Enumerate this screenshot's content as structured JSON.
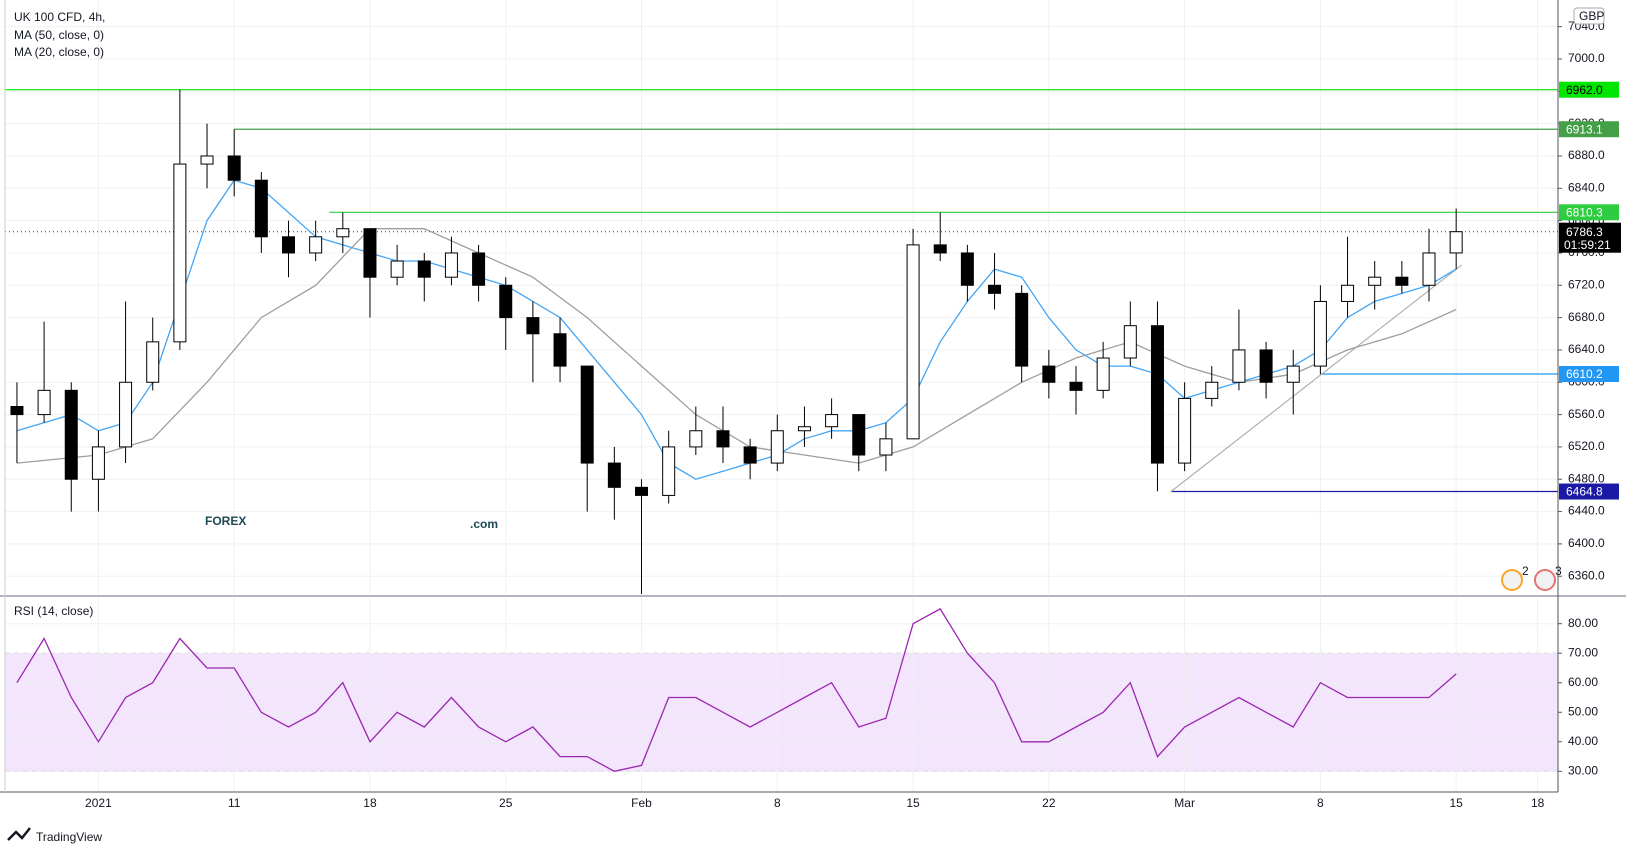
{
  "chart_data": {
    "type": "candlestick",
    "title": "UK 100 CFD, 4h,",
    "indicators": [
      "MA (50, close, 0)",
      "MA (20, close, 0)"
    ],
    "currency": "GBP",
    "brand": "TradingView",
    "logo": {
      "main": "FOREX",
      "suffix": ".com"
    },
    "badges": [
      "2",
      "3"
    ],
    "xlim": [
      -3.44,
      53.75
    ],
    "xticks": [
      {
        "value": 0,
        "label": "2021"
      },
      {
        "value": 5,
        "label": "11"
      },
      {
        "value": 10,
        "label": "18"
      },
      {
        "value": 15,
        "label": "25"
      },
      {
        "value": 20,
        "label": "Feb"
      },
      {
        "value": 25,
        "label": "8"
      },
      {
        "value": 30,
        "label": "15"
      },
      {
        "value": 35,
        "label": "22"
      },
      {
        "value": 40,
        "label": "Mar"
      },
      {
        "value": 45,
        "label": "8"
      },
      {
        "value": 50,
        "label": "15"
      },
      {
        "value": 53,
        "label": "18"
      }
    ],
    "ylim": [
      6338,
      7073
    ],
    "yticks": [
      {
        "value": 6360,
        "label": "6360.0"
      },
      {
        "value": 6400,
        "label": "6400.0"
      },
      {
        "value": 6440,
        "label": "6440.0"
      },
      {
        "value": 6480,
        "label": "6480.0"
      },
      {
        "value": 6520,
        "label": "6520.0"
      },
      {
        "value": 6560,
        "label": "6560.0"
      },
      {
        "value": 6600,
        "label": "6600.0"
      },
      {
        "value": 6640,
        "label": "6640.0"
      },
      {
        "value": 6680,
        "label": "6680.0"
      },
      {
        "value": 6720,
        "label": "6720.0"
      },
      {
        "value": 6760,
        "label": "6760.0"
      },
      {
        "value": 6800,
        "label": "6800.0"
      },
      {
        "value": 6840,
        "label": "6840.0"
      },
      {
        "value": 6880,
        "label": "6880.0"
      },
      {
        "value": 6920,
        "label": "6920.0"
      },
      {
        "value": 6960,
        "label": "6960.0"
      },
      {
        "value": 7000,
        "label": "7000.0"
      },
      {
        "value": 7040,
        "label": "7040.0"
      }
    ],
    "grid": true,
    "up_color": "#ffffff",
    "down_color": "#000000",
    "x": [
      -3,
      -2,
      -1,
      0,
      1,
      2,
      3,
      4,
      5,
      6,
      7,
      8,
      9,
      10,
      11,
      12,
      13,
      14,
      15,
      16,
      17,
      18,
      19,
      20,
      21,
      22,
      23,
      24,
      25,
      26,
      27,
      28,
      29,
      30,
      31,
      32,
      33,
      34,
      35,
      36,
      37,
      38,
      39,
      40,
      41,
      42,
      43,
      44,
      45,
      46,
      47,
      48,
      49,
      50
    ],
    "candles": [
      [
        6570,
        6600,
        6500,
        6560
      ],
      [
        6560,
        6675,
        6550,
        6590
      ],
      [
        6590,
        6600,
        6440,
        6480
      ],
      [
        6480,
        6540,
        6440,
        6520
      ],
      [
        6520,
        6700,
        6500,
        6600
      ],
      [
        6600,
        6680,
        6590,
        6650
      ],
      [
        6650,
        6962,
        6640,
        6870
      ],
      [
        6870,
        6920,
        6840,
        6880
      ],
      [
        6880,
        6913,
        6830,
        6850
      ],
      [
        6850,
        6860,
        6760,
        6780
      ],
      [
        6780,
        6800,
        6730,
        6760
      ],
      [
        6760,
        6800,
        6750,
        6780
      ],
      [
        6780,
        6810,
        6760,
        6790
      ],
      [
        6790,
        6790,
        6680,
        6730
      ],
      [
        6730,
        6770,
        6720,
        6750
      ],
      [
        6750,
        6760,
        6700,
        6730
      ],
      [
        6730,
        6780,
        6720,
        6760
      ],
      [
        6760,
        6770,
        6700,
        6720
      ],
      [
        6720,
        6730,
        6640,
        6680
      ],
      [
        6680,
        6700,
        6600,
        6660
      ],
      [
        6660,
        6680,
        6600,
        6620
      ],
      [
        6620,
        6620,
        6440,
        6500
      ],
      [
        6500,
        6520,
        6430,
        6470
      ],
      [
        6470,
        6480,
        6338,
        6460
      ],
      [
        6460,
        6540,
        6450,
        6520
      ],
      [
        6520,
        6570,
        6510,
        6540
      ],
      [
        6540,
        6570,
        6500,
        6520
      ],
      [
        6520,
        6530,
        6480,
        6500
      ],
      [
        6500,
        6560,
        6490,
        6540
      ],
      [
        6540,
        6570,
        6520,
        6545
      ],
      [
        6545,
        6580,
        6530,
        6560
      ],
      [
        6560,
        6560,
        6490,
        6510
      ],
      [
        6510,
        6550,
        6490,
        6530
      ],
      [
        6530,
        6790,
        6530,
        6770
      ],
      [
        6770,
        6810,
        6750,
        6760
      ],
      [
        6760,
        6770,
        6700,
        6720
      ],
      [
        6720,
        6760,
        6690,
        6710
      ],
      [
        6710,
        6720,
        6600,
        6620
      ],
      [
        6620,
        6640,
        6580,
        6600
      ],
      [
        6600,
        6620,
        6560,
        6590
      ],
      [
        6590,
        6650,
        6580,
        6630
      ],
      [
        6630,
        6700,
        6620,
        6670
      ],
      [
        6670,
        6700,
        6465,
        6500
      ],
      [
        6500,
        6600,
        6490,
        6580
      ],
      [
        6580,
        6620,
        6570,
        6600
      ],
      [
        6600,
        6690,
        6590,
        6640
      ],
      [
        6640,
        6650,
        6580,
        6600
      ],
      [
        6600,
        6640,
        6560,
        6620
      ],
      [
        6620,
        6720,
        6610,
        6700
      ],
      [
        6700,
        6780,
        6680,
        6720
      ],
      [
        6720,
        6750,
        6690,
        6730
      ],
      [
        6730,
        6750,
        6710,
        6720
      ],
      [
        6720,
        6790,
        6700,
        6760
      ],
      [
        6760,
        6815,
        6740,
        6786.3
      ]
    ],
    "series": [
      {
        "name": "MA (20, close, 0)",
        "color": "#42a5f5",
        "x": [
          -3,
          -1,
          0,
          1,
          2,
          3,
          4,
          5,
          6,
          7,
          8,
          9,
          10,
          11,
          12,
          13,
          14,
          15,
          16,
          17,
          18,
          19,
          20,
          21,
          22,
          23,
          24,
          25,
          26,
          27,
          28,
          29,
          30,
          31,
          32,
          33,
          34,
          35,
          36,
          37,
          38,
          39,
          40,
          41,
          42,
          43,
          44,
          45,
          46,
          47,
          48,
          49,
          50
        ],
        "values": [
          6540,
          6560,
          6540,
          6550,
          6600,
          6700,
          6800,
          6850,
          6840,
          6810,
          6780,
          6770,
          6760,
          6750,
          6750,
          6740,
          6730,
          6720,
          6700,
          6680,
          6640,
          6600,
          6560,
          6500,
          6480,
          6490,
          6500,
          6510,
          6530,
          6540,
          6540,
          6550,
          6580,
          6650,
          6700,
          6740,
          6730,
          6680,
          6640,
          6620,
          6620,
          6610,
          6580,
          6590,
          6600,
          6610,
          6620,
          6640,
          6680,
          6700,
          6710,
          6720,
          6740
        ]
      },
      {
        "name": "MA (50, close, 0)",
        "color": "#9e9e9e",
        "x": [
          -3,
          0,
          2,
          4,
          6,
          8,
          10,
          12,
          14,
          16,
          18,
          20,
          22,
          24,
          26,
          28,
          30,
          32,
          34,
          36,
          38,
          40,
          42,
          44,
          46,
          48,
          50
        ],
        "values": [
          6500,
          6510,
          6530,
          6600,
          6680,
          6720,
          6790,
          6790,
          6760,
          6730,
          6680,
          6620,
          6560,
          6520,
          6510,
          6500,
          6520,
          6560,
          6600,
          6630,
          6650,
          6620,
          6600,
          6610,
          6640,
          6660,
          6690
        ]
      }
    ],
    "levels": [
      {
        "value": 6962.0,
        "label": "6962.0",
        "color": "#00e600",
        "start": -3.44
      },
      {
        "value": 6913.1,
        "label": "6913.1",
        "color": "#43a047",
        "start": 5
      },
      {
        "value": 6810.3,
        "label": "6810.3",
        "color": "#2ecc40",
        "start": 8.5
      },
      {
        "value": 6610.2,
        "label": "6610.2",
        "color": "#2196f3",
        "start": 45
      },
      {
        "value": 6464.8,
        "label": "6464.8",
        "color": "#1a1aa6",
        "start": 39.5
      }
    ],
    "trendline": {
      "x": [
        39.5,
        50.2
      ],
      "y": [
        6464.8,
        6745
      ]
    },
    "last_price": {
      "value": 6786.3,
      "label": "6786.3",
      "countdown": "01:59:21"
    },
    "rsi": {
      "name": "RSI (14, close)",
      "color": "#9c27b0",
      "ylim": [
        23,
        88.7
      ],
      "yticks": [
        {
          "value": 30,
          "label": "30.00"
        },
        {
          "value": 40,
          "label": "40.00"
        },
        {
          "value": 50,
          "label": "50.00"
        },
        {
          "value": 60,
          "label": "60.00"
        },
        {
          "value": 70,
          "label": "70.00"
        },
        {
          "value": 80,
          "label": "80.00"
        }
      ],
      "bands": [
        30,
        70
      ],
      "band_color": "#f3e5fc",
      "values": [
        60,
        75,
        55,
        40,
        55,
        60,
        75,
        65,
        65,
        50,
        45,
        50,
        60,
        40,
        50,
        45,
        55,
        45,
        40,
        45,
        35,
        35,
        30,
        32,
        55,
        55,
        50,
        45,
        50,
        55,
        60,
        45,
        48,
        80,
        85,
        70,
        60,
        40,
        40,
        45,
        50,
        60,
        35,
        45,
        50,
        55,
        50,
        45,
        60,
        55,
        55,
        55,
        55,
        63
      ]
    }
  }
}
